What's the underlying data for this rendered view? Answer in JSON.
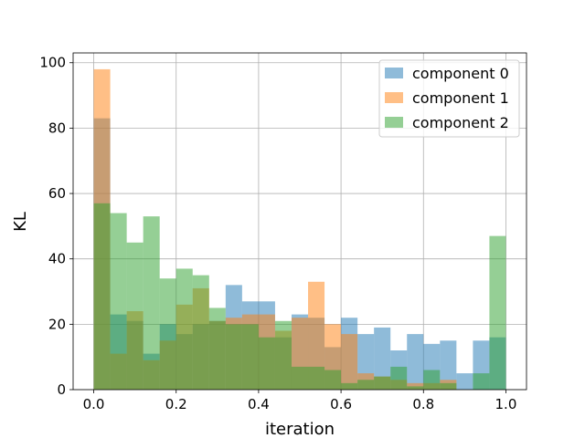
{
  "chart_data": {
    "type": "bar",
    "title": "",
    "xlabel": "iteration",
    "ylabel": "KL",
    "xlim": [
      -0.05,
      1.05
    ],
    "ylim": [
      0,
      103
    ],
    "xticks": [
      0.0,
      0.2,
      0.4,
      0.6,
      0.8,
      1.0
    ],
    "xtick_labels": [
      "0.0",
      "0.2",
      "0.4",
      "0.6",
      "0.8",
      "1.0"
    ],
    "yticks": [
      0,
      20,
      40,
      60,
      80,
      100
    ],
    "ytick_labels": [
      "0",
      "20",
      "40",
      "60",
      "80",
      "100"
    ],
    "grid": true,
    "legend_position": "top-right",
    "bins": 25,
    "bin_range": [
      0.0,
      1.0
    ],
    "series": [
      {
        "name": "component 0",
        "color": "#1f77b4",
        "values": [
          83,
          23,
          21,
          11,
          20,
          17,
          20,
          21,
          32,
          27,
          27,
          16,
          23,
          22,
          13,
          22,
          17,
          19,
          12,
          17,
          14,
          15,
          5,
          15,
          16
        ]
      },
      {
        "name": "component 1",
        "color": "#ff7f0e",
        "values": [
          98,
          11,
          24,
          9,
          15,
          26,
          31,
          21,
          22,
          23,
          23,
          18,
          22,
          33,
          20,
          17,
          5,
          4,
          3,
          2,
          2,
          3,
          0,
          0,
          0
        ]
      },
      {
        "name": "component 2",
        "color": "#2ca02c",
        "values": [
          57,
          54,
          45,
          53,
          34,
          37,
          35,
          25,
          20,
          20,
          16,
          21,
          7,
          7,
          6,
          2,
          3,
          4,
          7,
          1,
          6,
          2,
          0,
          5,
          47
        ]
      }
    ]
  }
}
